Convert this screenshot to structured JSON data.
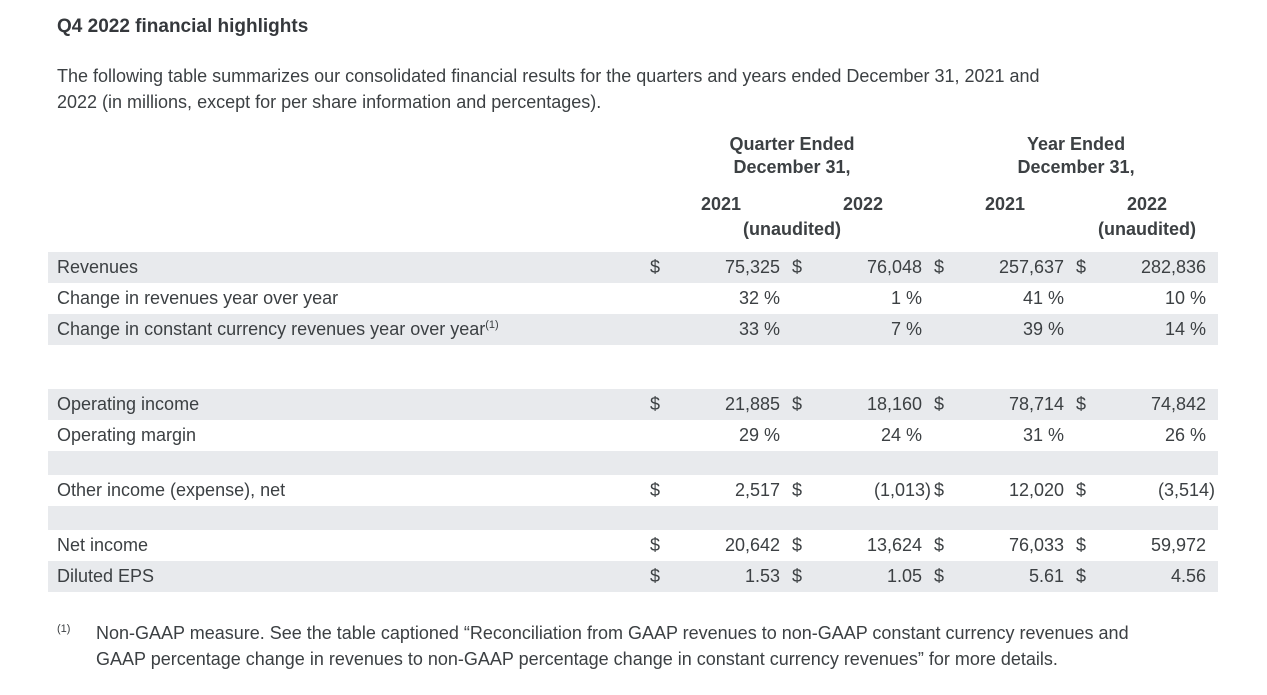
{
  "title": "Q4 2022 financial highlights",
  "intro": "The following table summarizes our consolidated financial results for the quarters and years ended December 31, 2021 and 2022 (in millions, except for per share information and percentages).",
  "table": {
    "currency_symbol": "$",
    "groups": [
      {
        "line1": "Quarter Ended",
        "line2": "December 31,"
      },
      {
        "line1": "Year Ended",
        "line2": "December 31,"
      }
    ],
    "years": [
      "2021",
      "2022",
      "2021",
      "2022"
    ],
    "unaudited": "(unaudited)",
    "rows": [
      {
        "label": "Revenues",
        "currency": true,
        "values": [
          "75,325",
          "76,048",
          "257,637",
          "282,836"
        ]
      },
      {
        "label": "Change in revenues year over year",
        "currency": false,
        "values": [
          "32 %",
          "1 %",
          "41 %",
          "10 %"
        ]
      },
      {
        "label": "Change in constant currency revenues year over year",
        "sup": "(1)",
        "currency": false,
        "values": [
          "33 %",
          "7 %",
          "39 %",
          "14 %"
        ]
      },
      {
        "label": "Operating income",
        "currency": true,
        "values": [
          "21,885",
          "18,160",
          "78,714",
          "74,842"
        ]
      },
      {
        "label": "Operating margin",
        "currency": false,
        "values": [
          "29 %",
          "24 %",
          "31 %",
          "26 %"
        ]
      },
      {
        "label": "Other income (expense), net",
        "currency": true,
        "values": [
          "2,517",
          "(1,013)",
          "12,020",
          "(3,514)"
        ]
      },
      {
        "label": "Net income",
        "currency": true,
        "values": [
          "20,642",
          "13,624",
          "76,033",
          "59,972"
        ]
      },
      {
        "label": "Diluted EPS",
        "currency": true,
        "values": [
          "1.53",
          "1.05",
          "5.61",
          "4.56"
        ]
      }
    ]
  },
  "footnote": {
    "marker": "(1)",
    "text": "Non-GAAP measure. See the table captioned “Reconciliation from GAAP revenues to non-GAAP constant currency revenues and GAAP percentage change in revenues to non-GAAP percentage change in constant currency revenues” for more details."
  }
}
